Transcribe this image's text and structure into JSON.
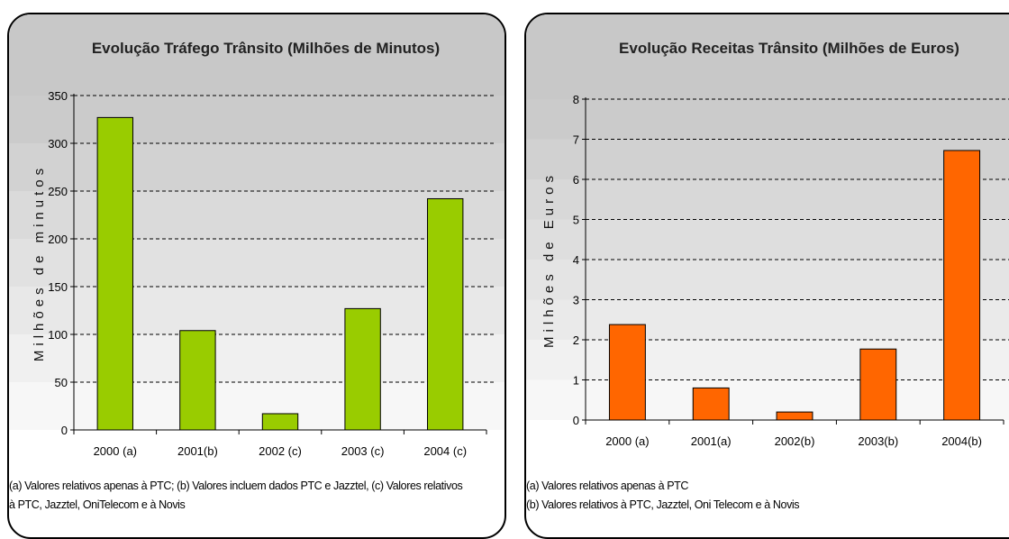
{
  "chart_data": [
    {
      "type": "bar",
      "title": "Evolução Tráfego Trânsito (Milhões de Minutos)",
      "ylabel": "Milhões de minutos",
      "categories": [
        "2000 (a)",
        "2001(b)",
        "2002 (c)",
        "2003 (c)",
        "2004 (c)"
      ],
      "values": [
        327,
        104,
        17,
        127,
        242
      ],
      "ylim": [
        0,
        350
      ],
      "yticks": [
        0,
        50,
        100,
        150,
        200,
        250,
        300,
        350
      ],
      "grid": true,
      "colors": {
        "bar": "#99cc00"
      },
      "notes": [
        "(a) Valores relativos apenas à PTC; (b) Valores incluem dados PTC e Jazztel, (c) Valores relativos",
        "à PTC, Jazztel, OniTelecom e à Novis"
      ]
    },
    {
      "type": "bar",
      "title": "Evolução Receitas Trânsito (Milhões de Euros)",
      "ylabel": "Milhões de Euros",
      "categories": [
        "2000 (a)",
        "2001(a)",
        "2002(b)",
        "2003(b)",
        "2004(b)"
      ],
      "values": [
        2.38,
        0.8,
        0.2,
        1.77,
        6.72
      ],
      "ylim": [
        0,
        8
      ],
      "yticks": [
        0,
        1,
        2,
        3,
        4,
        5,
        6,
        7,
        8
      ],
      "grid": true,
      "colors": {
        "bar": "#ff6600"
      },
      "notes": [
        "(a) Valores relativos apenas à PTC",
        "(b) Valores relativos à PTC, Jazztel, Oni Telecom e à Novis"
      ]
    }
  ]
}
